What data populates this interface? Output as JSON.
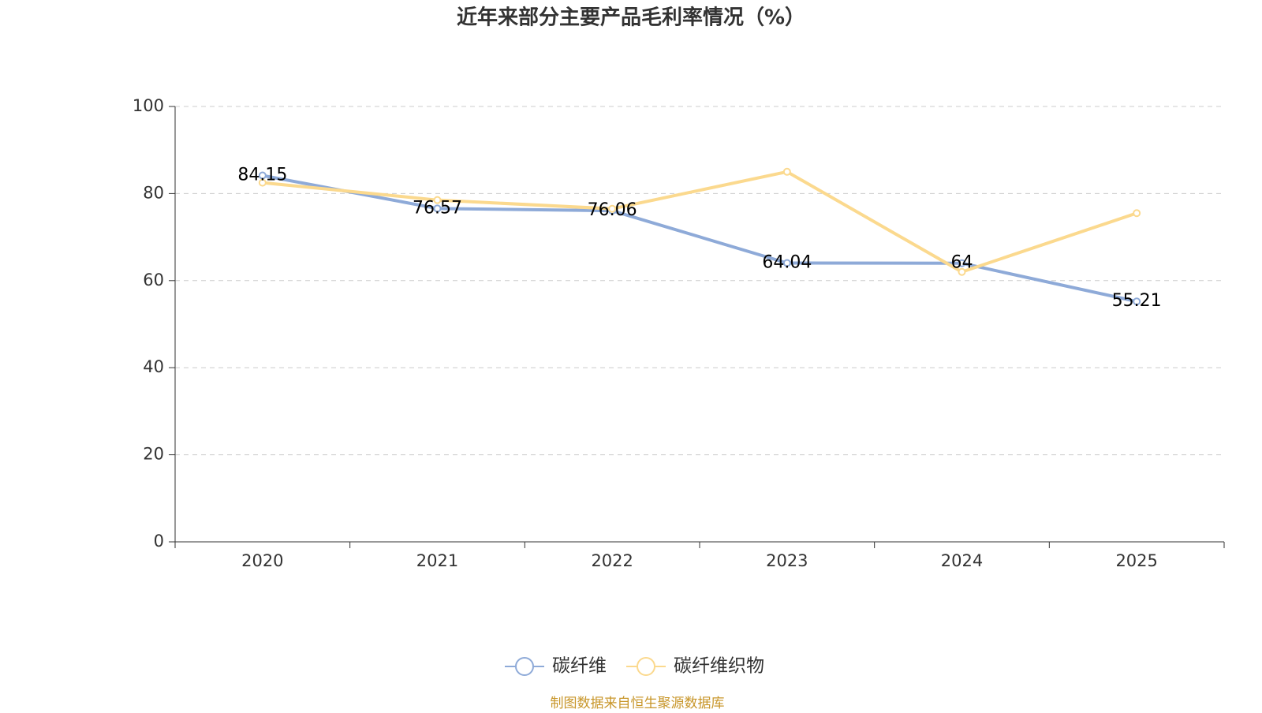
{
  "chart_data": {
    "type": "line",
    "title": "近年来部分主要产品毛利率情况（%）",
    "categories": [
      "2020",
      "2021",
      "2022",
      "2023",
      "2024",
      "2025"
    ],
    "series": [
      {
        "name": "碳纤维",
        "color": "#8eaad8",
        "values": [
          84.15,
          76.57,
          76.06,
          64.04,
          64,
          55.21
        ]
      },
      {
        "name": "碳纤维织物",
        "color": "#fbd98e",
        "values": [
          82.5,
          78.5,
          76.5,
          85,
          62,
          75.5
        ]
      }
    ],
    "ylim": [
      0,
      100
    ],
    "yticks": [
      0,
      20,
      40,
      60,
      80,
      100
    ],
    "grid": true,
    "source": "制图数据来自恒生聚源数据库"
  }
}
